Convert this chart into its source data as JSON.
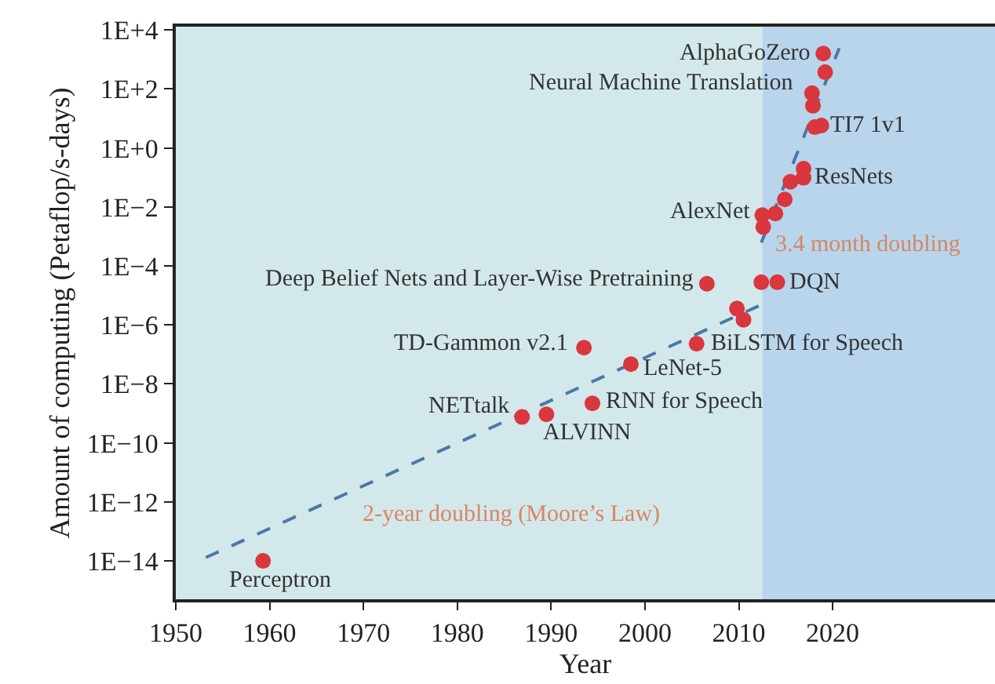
{
  "chart_data": {
    "type": "scatter",
    "xlabel": "Year",
    "ylabel": "Amount of computing (Petaflop/s-days)",
    "log": "y",
    "grid": false,
    "marker": "circle",
    "xlim": [
      1950,
      2037.3
    ],
    "xticks": [
      1950,
      1960,
      1970,
      1980,
      1990,
      2000,
      2010,
      2020
    ],
    "ylim": [
      5e-16,
      13000
    ],
    "yticks": [
      {
        "value": 1e-14,
        "label": "1E−14"
      },
      {
        "value": 1e-12,
        "label": "1E−12"
      },
      {
        "value": 1e-10,
        "label": "1E−10"
      },
      {
        "value": 1e-08,
        "label": "1E−8"
      },
      {
        "value": 1e-06,
        "label": "1E−6"
      },
      {
        "value": 0.0001,
        "label": "1E−4"
      },
      {
        "value": 0.01,
        "label": "1E−2"
      },
      {
        "value": 1,
        "label": "1E+0"
      },
      {
        "value": 100,
        "label": "1E+2"
      },
      {
        "value": 10000,
        "label": "1E+4"
      }
    ],
    "bands": [
      {
        "axis": "x",
        "from": 1950,
        "to": 2012.5,
        "color": "#d3e8ea"
      },
      {
        "axis": "x",
        "from": 2012.5,
        "to": 2037.3,
        "color": "#b8d5ec"
      }
    ],
    "series": [
      {
        "type": "line",
        "color": "#4a78a8",
        "line_style": "dashed",
        "marker": "none",
        "x": [
          1953.2,
          2012.3
        ],
        "values": [
          1.3e-14,
          4.7e-06
        ]
      },
      {
        "type": "line",
        "color": "#4a78a8",
        "line_style": "dashed",
        "marker": "none",
        "x": [
          2012.4,
          2020.7
        ],
        "values": [
          0.00062,
          2400
        ]
      },
      {
        "type": "scatter",
        "color": "#d9363e",
        "x": [
          1959.3,
          1986.9,
          1989.5,
          1993.5,
          1994.4,
          1998.5,
          2005.5,
          2009.8,
          2010.5,
          2006.6,
          2012.4,
          2014.1,
          2012.5,
          2012.6,
          2013.9,
          2014.9,
          2015.5,
          2016.9,
          2016.9,
          2018.1,
          2018.8,
          2017.8,
          2017.9,
          2019.2,
          2019.0
        ],
        "values": [
          1e-14,
          7.6e-10,
          9.3e-10,
          1.7e-07,
          2.2e-09,
          4.7e-08,
          2.3e-07,
          3.6e-06,
          1.5e-06,
          2.5e-05,
          2.8e-05,
          2.8e-05,
          0.0053,
          0.0021,
          0.006,
          0.018,
          0.072,
          0.2,
          0.098,
          5.1,
          5.8,
          72,
          27,
          370,
          1600
        ]
      }
    ],
    "annotations": [
      {
        "text": "AlphaGoZero",
        "x": 2019.0,
        "y": 1600
      },
      {
        "text": "Neural Machine Translation",
        "x": 2017.8,
        "y": 72
      },
      {
        "text": "TI7 1v1",
        "x": 2018.8,
        "y": 5.8
      },
      {
        "text": "ResNets",
        "x": 2016.9,
        "y": 0.098
      },
      {
        "text": "AlexNet",
        "x": 2012.5,
        "y": 0.0053
      },
      {
        "text": "3.4 month doubling",
        "x": 2013,
        "y": 0.0019
      },
      {
        "text": "Deep Belief Nets and Layer-Wise Pretraining",
        "x": 2006.6,
        "y": 2.5e-05
      },
      {
        "text": "DQN",
        "x": 2014.1,
        "y": 2.8e-05
      },
      {
        "text": "TD-Gammon v2.1",
        "x": 1993.5,
        "y": 1.7e-07
      },
      {
        "text": "BiLSTM for Speech",
        "x": 2005.5,
        "y": 2.3e-07
      },
      {
        "text": "LeNet-5",
        "x": 1998.5,
        "y": 4.7e-08
      },
      {
        "text": "RNN for Speech",
        "x": 1994.4,
        "y": 2.2e-09
      },
      {
        "text": "NETtalk",
        "x": 1986.9,
        "y": 7.6e-10
      },
      {
        "text": "ALVINN",
        "x": 1989.5,
        "y": 9.3e-10
      },
      "2-year doubling (Moore’s Law)",
      {
        "text": "Perceptron",
        "x": 1959.3,
        "y": 1e-14
      }
    ]
  }
}
